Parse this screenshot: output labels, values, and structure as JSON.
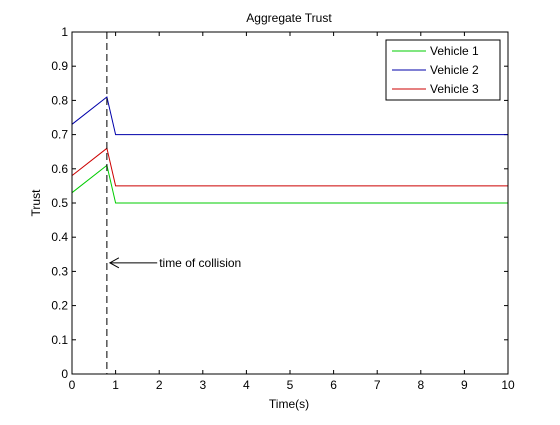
{
  "chart_data": {
    "type": "line",
    "title": "Aggregate Trust",
    "xlabel": "Time(s)",
    "ylabel": "Trust",
    "xlim": [
      0,
      10
    ],
    "ylim": [
      0,
      1
    ],
    "x_ticks": [
      "0",
      "1",
      "2",
      "3",
      "4",
      "5",
      "6",
      "7",
      "8",
      "9",
      "10"
    ],
    "y_ticks": [
      "0",
      "0.1",
      "0.2",
      "0.3",
      "0.4",
      "0.5",
      "0.6",
      "0.7",
      "0.8",
      "0.9",
      "1"
    ],
    "grid": false,
    "legend_position": "top-right",
    "series": [
      {
        "name": "Vehicle 1",
        "color": "#00cc00",
        "points": [
          [
            0,
            0.53
          ],
          [
            0.8,
            0.61
          ],
          [
            1.0,
            0.5
          ],
          [
            10,
            0.5
          ]
        ]
      },
      {
        "name": "Vehicle 2",
        "color": "#0000aa",
        "points": [
          [
            0,
            0.73
          ],
          [
            0.8,
            0.81
          ],
          [
            1.0,
            0.7
          ],
          [
            10,
            0.7
          ]
        ]
      },
      {
        "name": "Vehicle 3",
        "color": "#cc0000",
        "points": [
          [
            0,
            0.58
          ],
          [
            0.8,
            0.66
          ],
          [
            1.0,
            0.55
          ],
          [
            10,
            0.55
          ]
        ]
      }
    ],
    "vline": {
      "x": 0.8,
      "style": "dashed",
      "color": "#000000"
    },
    "annotation": {
      "text": "time of collision",
      "arrow_to": [
        0.8,
        0.325
      ],
      "text_at": [
        2.0,
        0.325
      ]
    }
  }
}
